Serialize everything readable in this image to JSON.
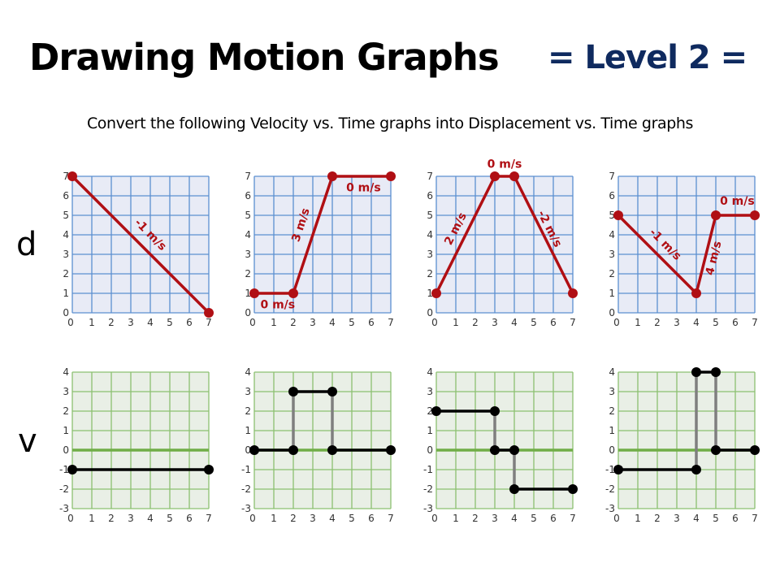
{
  "header": {
    "title": "Drawing Motion Graphs",
    "level": "= Level 2 =",
    "subtitle": "Convert the following Velocity vs. Time graphs into Displacement vs. Time graphs"
  },
  "row_labels": {
    "displacement": "d",
    "velocity": "v"
  },
  "colors": {
    "d_grid": "#5b8fd0",
    "d_bg": "#e8ebf6",
    "d_line": "#b00f14",
    "v_grid": "#8cc070",
    "v_bg": "#e9efe6",
    "v_zero_axis": "#70ad47",
    "v_line": "#000000",
    "v_connector": "#7f7f7f",
    "level_text": "#0f2a5f"
  },
  "chart_data": [
    {
      "type": "line",
      "row": "d",
      "title": "d graph 1",
      "xlabel": "",
      "ylabel": "d",
      "xlim": [
        0,
        7
      ],
      "ylim": [
        0,
        7
      ],
      "x_ticks": [
        "0",
        "1",
        "2",
        "3",
        "4",
        "5",
        "6",
        "7"
      ],
      "y_ticks": [
        "0",
        "1",
        "2",
        "3",
        "4",
        "5",
        "6",
        "7"
      ],
      "points": [
        [
          0,
          7
        ],
        [
          7,
          0
        ]
      ],
      "annotations": [
        {
          "text": "-1 m/s",
          "x": 4,
          "y": 4,
          "angle": 45
        }
      ]
    },
    {
      "type": "line",
      "row": "d",
      "title": "d graph 2",
      "xlabel": "",
      "ylabel": "d",
      "xlim": [
        0,
        7
      ],
      "ylim": [
        0,
        7
      ],
      "x_ticks": [
        "0",
        "1",
        "2",
        "3",
        "4",
        "5",
        "6",
        "7"
      ],
      "y_ticks": [
        "0",
        "1",
        "2",
        "3",
        "4",
        "5",
        "6",
        "7"
      ],
      "points": [
        [
          0,
          1
        ],
        [
          2,
          1
        ],
        [
          4,
          7
        ],
        [
          7,
          7
        ]
      ],
      "annotations": [
        {
          "text": "0 m/s",
          "x": 1.2,
          "y": 0.4,
          "angle": 0
        },
        {
          "text": "3 m/s",
          "x": 2.4,
          "y": 4.5,
          "angle": -72
        },
        {
          "text": "0 m/s",
          "x": 5.6,
          "y": 6.4,
          "angle": 0
        }
      ]
    },
    {
      "type": "line",
      "row": "d",
      "title": "d graph 3",
      "xlabel": "",
      "ylabel": "d",
      "xlim": [
        0,
        7
      ],
      "ylim": [
        0,
        7
      ],
      "x_ticks": [
        "0",
        "1",
        "2",
        "3",
        "4",
        "5",
        "6",
        "7"
      ],
      "y_ticks": [
        "0",
        "1",
        "2",
        "3",
        "4",
        "5",
        "6",
        "7"
      ],
      "points": [
        [
          0,
          1
        ],
        [
          3,
          7
        ],
        [
          4,
          7
        ],
        [
          7,
          1
        ]
      ],
      "annotations": [
        {
          "text": "2 m/s",
          "x": 1.0,
          "y": 4.3,
          "angle": -63
        },
        {
          "text": "0 m/s",
          "x": 3.5,
          "y": 7.6,
          "angle": 0
        },
        {
          "text": "-2 m/s",
          "x": 5.8,
          "y": 4.3,
          "angle": 63
        }
      ]
    },
    {
      "type": "line",
      "row": "d",
      "title": "d graph 4",
      "xlabel": "",
      "ylabel": "d",
      "xlim": [
        0,
        7
      ],
      "ylim": [
        0,
        7
      ],
      "x_ticks": [
        "0",
        "1",
        "2",
        "3",
        "4",
        "5",
        "6",
        "7"
      ],
      "y_ticks": [
        "0",
        "1",
        "2",
        "3",
        "4",
        "5",
        "6",
        "7"
      ],
      "points": [
        [
          0,
          5
        ],
        [
          4,
          1
        ],
        [
          5,
          5
        ],
        [
          7,
          5
        ]
      ],
      "annotations": [
        {
          "text": "-1 m/s",
          "x": 2.4,
          "y": 3.5,
          "angle": 45
        },
        {
          "text": "4 m/s",
          "x": 4.9,
          "y": 2.8,
          "angle": -76
        },
        {
          "text": "0 m/s",
          "x": 6.1,
          "y": 5.7,
          "angle": 0
        }
      ]
    },
    {
      "type": "line",
      "row": "v",
      "title": "v graph 1",
      "xlabel": "",
      "ylabel": "v",
      "xlim": [
        0,
        7
      ],
      "ylim": [
        -3,
        4
      ],
      "x_ticks": [
        "0",
        "1",
        "2",
        "3",
        "4",
        "5",
        "6",
        "7"
      ],
      "y_ticks": [
        "-3",
        "-2",
        "-1",
        "0",
        "1",
        "2",
        "3",
        "4"
      ],
      "segments": [
        [
          [
            0,
            -1
          ],
          [
            7,
            -1
          ]
        ]
      ],
      "connectors": []
    },
    {
      "type": "line",
      "row": "v",
      "title": "v graph 2",
      "xlabel": "",
      "ylabel": "v",
      "xlim": [
        0,
        7
      ],
      "ylim": [
        -3,
        4
      ],
      "x_ticks": [
        "0",
        "1",
        "2",
        "3",
        "4",
        "5",
        "6",
        "7"
      ],
      "y_ticks": [
        "-3",
        "-2",
        "-1",
        "0",
        "1",
        "2",
        "3",
        "4"
      ],
      "segments": [
        [
          [
            0,
            0
          ],
          [
            2,
            0
          ]
        ],
        [
          [
            2,
            3
          ],
          [
            4,
            3
          ]
        ],
        [
          [
            4,
            0
          ],
          [
            7,
            0
          ]
        ]
      ],
      "connectors": [
        [
          [
            2,
            0
          ],
          [
            2,
            3
          ]
        ],
        [
          [
            4,
            3
          ],
          [
            4,
            0
          ]
        ]
      ]
    },
    {
      "type": "line",
      "row": "v",
      "title": "v graph 3",
      "xlabel": "",
      "ylabel": "v",
      "xlim": [
        0,
        7
      ],
      "ylim": [
        -3,
        4
      ],
      "x_ticks": [
        "0",
        "1",
        "2",
        "3",
        "4",
        "5",
        "6",
        "7"
      ],
      "y_ticks": [
        "-3",
        "-2",
        "-1",
        "0",
        "1",
        "2",
        "3",
        "4"
      ],
      "segments": [
        [
          [
            0,
            2
          ],
          [
            3,
            2
          ]
        ],
        [
          [
            3,
            0
          ],
          [
            4,
            0
          ]
        ],
        [
          [
            4,
            -2
          ],
          [
            7,
            -2
          ]
        ]
      ],
      "connectors": [
        [
          [
            3,
            2
          ],
          [
            3,
            0
          ]
        ],
        [
          [
            4,
            0
          ],
          [
            4,
            -2
          ]
        ]
      ]
    },
    {
      "type": "line",
      "row": "v",
      "title": "v graph 4",
      "xlabel": "",
      "ylabel": "v",
      "xlim": [
        0,
        7
      ],
      "ylim": [
        -3,
        4
      ],
      "x_ticks": [
        "0",
        "1",
        "2",
        "3",
        "4",
        "5",
        "6",
        "7"
      ],
      "y_ticks": [
        "-3",
        "-2",
        "-1",
        "0",
        "1",
        "2",
        "3",
        "4"
      ],
      "segments": [
        [
          [
            0,
            -1
          ],
          [
            4,
            -1
          ]
        ],
        [
          [
            4,
            4
          ],
          [
            5,
            4
          ]
        ],
        [
          [
            5,
            0
          ],
          [
            7,
            0
          ]
        ]
      ],
      "connectors": [
        [
          [
            4,
            -1
          ],
          [
            4,
            4
          ]
        ],
        [
          [
            5,
            4
          ],
          [
            5,
            0
          ]
        ]
      ]
    }
  ]
}
